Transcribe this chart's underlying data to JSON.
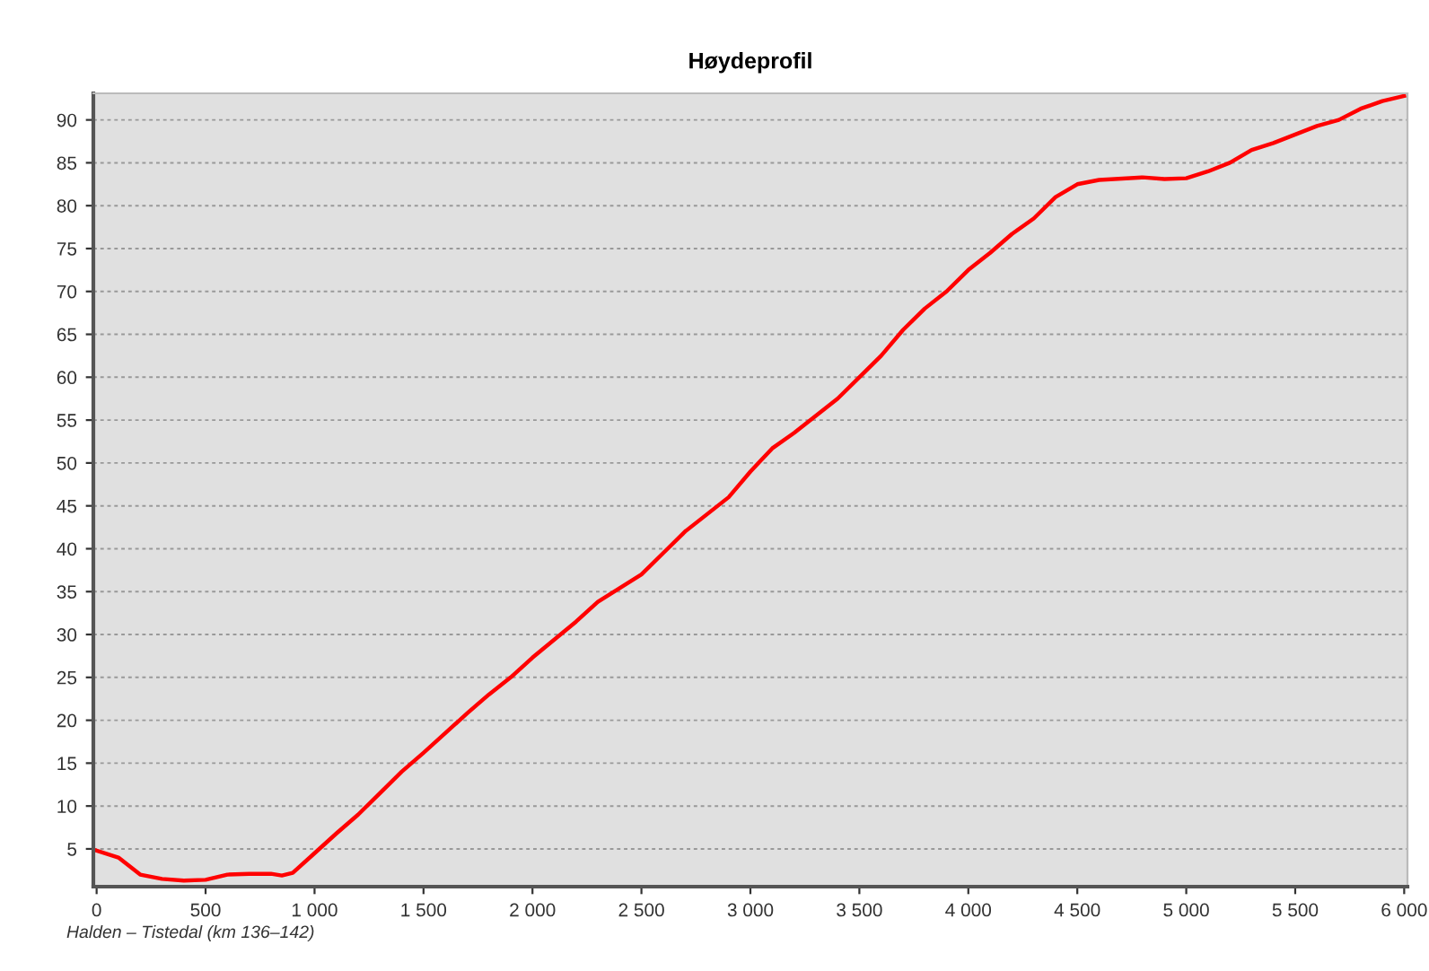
{
  "chart_data": {
    "type": "line",
    "title": "Høydeprofil",
    "annotations": [
      "Halden – Tistedal (km 136–142)"
    ],
    "x": [
      0,
      100,
      200,
      300,
      400,
      500,
      600,
      700,
      800,
      850,
      900,
      1000,
      1100,
      1200,
      1300,
      1400,
      1500,
      1600,
      1700,
      1800,
      1900,
      2000,
      2200,
      2300,
      2500,
      2600,
      2700,
      2900,
      3000,
      3100,
      3200,
      3400,
      3500,
      3600,
      3700,
      3800,
      3900,
      4000,
      4100,
      4200,
      4300,
      4400,
      4500,
      4600,
      4800,
      4900,
      5000,
      5100,
      5200,
      5300,
      5400,
      5500,
      5600,
      5700,
      5800,
      5900,
      6000
    ],
    "series": [
      {
        "color": "#ff0000",
        "values": [
          4.8,
          4,
          2.0,
          1.5,
          1.3,
          1.4,
          2.0,
          2.1,
          2.1,
          1.9,
          2.2,
          4.5,
          6.8,
          9,
          11.5,
          14,
          16.2,
          18.5,
          20.8,
          23,
          25,
          27.3,
          31.5,
          33.8,
          37,
          39.5,
          42,
          46,
          49,
          51.7,
          53.5,
          57.5,
          60,
          62.5,
          65.5,
          68,
          70,
          72.5,
          74.5,
          76.7,
          78.5,
          81,
          82.5,
          83,
          83.3,
          83.1,
          83.2,
          84,
          85,
          86.5,
          87.3,
          88.3,
          89.3,
          90,
          91.3,
          92.2,
          92.8
        ]
      }
    ],
    "xlim": [
      -15,
      6015
    ],
    "ylim": [
      0.6,
      93.1
    ],
    "xticks": [
      0,
      500,
      {
        "value": 1000,
        "label": "1 000"
      },
      {
        "value": 1500,
        "label": "1 500"
      },
      {
        "value": 2000,
        "label": "2 000"
      },
      {
        "value": 2500,
        "label": "2 500"
      },
      {
        "value": 3000,
        "label": "3 000"
      },
      {
        "value": 3500,
        "label": "3 500"
      },
      {
        "value": 4000,
        "label": "4 000"
      },
      {
        "value": 4500,
        "label": "4 500"
      },
      {
        "value": 5000,
        "label": "5 000"
      },
      {
        "value": 5500,
        "label": "5 500"
      },
      {
        "value": 6000,
        "label": "6 000"
      }
    ],
    "yticks": [
      5,
      10,
      15,
      20,
      25,
      30,
      35,
      40,
      45,
      50,
      55,
      60,
      65,
      70,
      75,
      80,
      85,
      90
    ],
    "grid": "y",
    "marker": "none",
    "line_style": "solid",
    "legend": false
  }
}
